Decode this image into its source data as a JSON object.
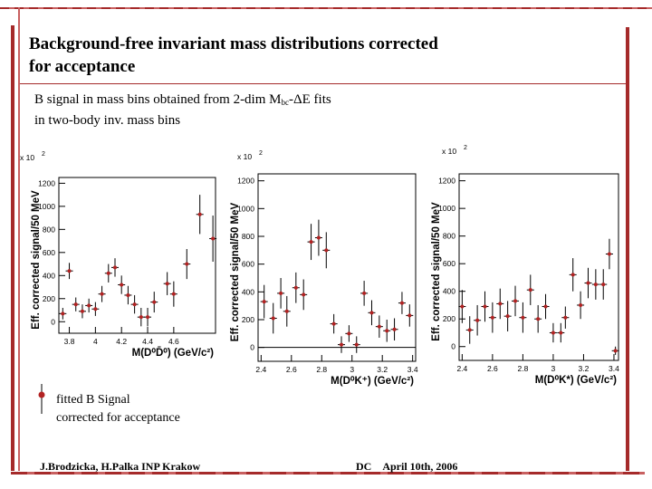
{
  "slide": {
    "title_line1": "Background-free invariant mass distributions corrected",
    "title_line2": "for acceptance",
    "subtitle_part1": "B signal in mass bins obtained from 2-dim M",
    "subtitle_sub": "bc",
    "subtitle_part2": "-ΔE fits",
    "subtitle_line2": "in two-body inv. mass bins",
    "legend_line1": "fitted B Signal",
    "legend_line2": "corrected for acceptance",
    "footer_left": "J.Brodzicka, H.Palka  INP Krakow",
    "footer_dc": "DC",
    "footer_date": "April 10th, 2006",
    "accent_color": "#a52a2a",
    "marker_color": "#b22222"
  },
  "chart_data": [
    {
      "type": "scatter",
      "xlabel": "M(D⁰D̄⁰) (GeV/c²)",
      "ylabel": "Eff. corrected signal/50 MeV",
      "y_multiplier": "x 10",
      "y_multiplier_exp": "2",
      "xlim": [
        3.72,
        4.92
      ],
      "ylim": [
        -100,
        1250
      ],
      "xticks": [
        3.8,
        4.0,
        4.2,
        4.4,
        4.6
      ],
      "xtick_labels": [
        "3.8",
        "4",
        "4.2",
        "4.4",
        "4.6"
      ],
      "yticks": [
        0,
        200,
        400,
        600,
        800,
        1000,
        1200
      ],
      "ytick_labels": [
        "0",
        "200",
        "400",
        "600",
        "800",
        "1000",
        "1200"
      ],
      "zero_line": false,
      "points": [
        {
          "x": 3.75,
          "y": 70,
          "err": 50
        },
        {
          "x": 3.8,
          "y": 440,
          "err": 70
        },
        {
          "x": 3.85,
          "y": 150,
          "err": 60
        },
        {
          "x": 3.9,
          "y": 90,
          "err": 60
        },
        {
          "x": 3.95,
          "y": 140,
          "err": 60
        },
        {
          "x": 4.0,
          "y": 110,
          "err": 60
        },
        {
          "x": 4.05,
          "y": 240,
          "err": 70
        },
        {
          "x": 4.1,
          "y": 420,
          "err": 80
        },
        {
          "x": 4.15,
          "y": 470,
          "err": 80
        },
        {
          "x": 4.2,
          "y": 320,
          "err": 80
        },
        {
          "x": 4.25,
          "y": 230,
          "err": 80
        },
        {
          "x": 4.3,
          "y": 150,
          "err": 80
        },
        {
          "x": 4.35,
          "y": 40,
          "err": 80
        },
        {
          "x": 4.4,
          "y": 40,
          "err": 80
        },
        {
          "x": 4.45,
          "y": 170,
          "err": 90
        },
        {
          "x": 4.55,
          "y": 330,
          "err": 100
        },
        {
          "x": 4.6,
          "y": 240,
          "err": 110
        },
        {
          "x": 4.7,
          "y": 500,
          "err": 130
        },
        {
          "x": 4.8,
          "y": 930,
          "err": 170
        },
        {
          "x": 4.9,
          "y": 720,
          "err": 200
        }
      ]
    },
    {
      "type": "scatter",
      "xlabel": "M(D⁰K⁺) (GeV/c²)",
      "ylabel": "Eff. corrected signal/50 MeV",
      "y_multiplier": "x 10",
      "y_multiplier_exp": "2",
      "xlim": [
        2.38,
        3.42
      ],
      "ylim": [
        -100,
        1250
      ],
      "xticks": [
        2.4,
        2.6,
        2.8,
        3.0,
        3.2,
        3.4
      ],
      "xtick_labels": [
        "2.4",
        "2.6",
        "2.8",
        "3",
        "3.2",
        "3.4"
      ],
      "yticks": [
        0,
        200,
        400,
        600,
        800,
        1000,
        1200
      ],
      "ytick_labels": [
        "0",
        "200",
        "400",
        "600",
        "800",
        "1000",
        "1200"
      ],
      "zero_line": true,
      "points": [
        {
          "x": 2.42,
          "y": 330,
          "err": 120
        },
        {
          "x": 2.48,
          "y": 210,
          "err": 110
        },
        {
          "x": 2.53,
          "y": 390,
          "err": 110
        },
        {
          "x": 2.57,
          "y": 260,
          "err": 110
        },
        {
          "x": 2.63,
          "y": 430,
          "err": 110
        },
        {
          "x": 2.68,
          "y": 380,
          "err": 110
        },
        {
          "x": 2.73,
          "y": 760,
          "err": 130
        },
        {
          "x": 2.78,
          "y": 790,
          "err": 130
        },
        {
          "x": 2.83,
          "y": 700,
          "err": 130
        },
        {
          "x": 2.88,
          "y": 170,
          "err": 70
        },
        {
          "x": 2.93,
          "y": 20,
          "err": 60
        },
        {
          "x": 2.98,
          "y": 100,
          "err": 60
        },
        {
          "x": 3.03,
          "y": 20,
          "err": 60
        },
        {
          "x": 3.08,
          "y": 390,
          "err": 90
        },
        {
          "x": 3.13,
          "y": 250,
          "err": 90
        },
        {
          "x": 3.18,
          "y": 150,
          "err": 80
        },
        {
          "x": 3.23,
          "y": 120,
          "err": 80
        },
        {
          "x": 3.28,
          "y": 130,
          "err": 80
        },
        {
          "x": 3.33,
          "y": 320,
          "err": 80
        },
        {
          "x": 3.38,
          "y": 230,
          "err": 80
        }
      ]
    },
    {
      "type": "scatter",
      "xlabel": "M(D⁰K*) (GeV/c²)",
      "ylabel": "Eff. corrected signal/50 MeV",
      "y_multiplier": "x 10",
      "y_multiplier_exp": "2",
      "xlim": [
        2.38,
        3.43
      ],
      "ylim": [
        -100,
        1250
      ],
      "xticks": [
        2.4,
        2.6,
        2.8,
        3.0,
        3.2,
        3.4
      ],
      "xtick_labels": [
        "2.4",
        "2.6",
        "2.8",
        "3",
        "3.2",
        "3.4"
      ],
      "yticks": [
        0,
        200,
        400,
        600,
        800,
        1000,
        1200
      ],
      "ytick_labels": [
        "0",
        "200",
        "400",
        "600",
        "800",
        "1000",
        "1200"
      ],
      "zero_line": false,
      "points": [
        {
          "x": 2.4,
          "y": 290,
          "err": 120
        },
        {
          "x": 2.45,
          "y": 120,
          "err": 100
        },
        {
          "x": 2.5,
          "y": 190,
          "err": 110
        },
        {
          "x": 2.55,
          "y": 290,
          "err": 110
        },
        {
          "x": 2.6,
          "y": 210,
          "err": 110
        },
        {
          "x": 2.65,
          "y": 310,
          "err": 110
        },
        {
          "x": 2.7,
          "y": 220,
          "err": 110
        },
        {
          "x": 2.75,
          "y": 330,
          "err": 110
        },
        {
          "x": 2.8,
          "y": 210,
          "err": 110
        },
        {
          "x": 2.85,
          "y": 410,
          "err": 110
        },
        {
          "x": 2.9,
          "y": 200,
          "err": 100
        },
        {
          "x": 2.95,
          "y": 290,
          "err": 90
        },
        {
          "x": 3.0,
          "y": 100,
          "err": 70
        },
        {
          "x": 3.05,
          "y": 100,
          "err": 70
        },
        {
          "x": 3.08,
          "y": 210,
          "err": 80
        },
        {
          "x": 3.13,
          "y": 520,
          "err": 120
        },
        {
          "x": 3.18,
          "y": 300,
          "err": 100
        },
        {
          "x": 3.23,
          "y": 460,
          "err": 110
        },
        {
          "x": 3.28,
          "y": 450,
          "err": 110
        },
        {
          "x": 3.33,
          "y": 450,
          "err": 110
        },
        {
          "x": 3.37,
          "y": 670,
          "err": 110
        },
        {
          "x": 3.41,
          "y": -30,
          "err": 30
        }
      ]
    }
  ]
}
